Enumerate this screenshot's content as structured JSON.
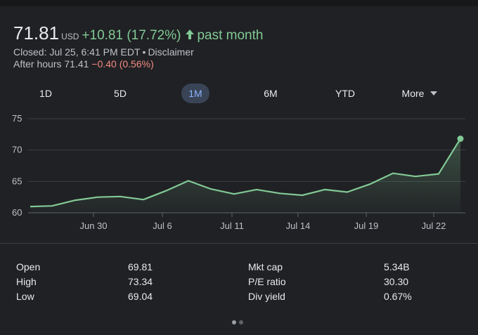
{
  "quote": {
    "price": "71.81",
    "currency": "USD",
    "change": "+10.81 (17.72%)",
    "period": "past month",
    "closed_text": "Closed: Jul 25, 6:41 PM EDT",
    "separator": "•",
    "disclaimer": "Disclaimer",
    "after_hours_label": "After hours 71.41",
    "after_hours_change": "−0.40 (0.56%)"
  },
  "ranges": [
    {
      "label": "1D",
      "active": false
    },
    {
      "label": "5D",
      "active": false
    },
    {
      "label": "1M",
      "active": true
    },
    {
      "label": "6M",
      "active": false
    },
    {
      "label": "YTD",
      "active": false
    },
    {
      "label": "More",
      "active": false
    }
  ],
  "colors": {
    "background": "#202124",
    "positive": "#81c995",
    "negative": "#f28b82",
    "active_tab_bg": "#394457",
    "active_tab_text": "#8ab4f8",
    "gridline": "#3c4043"
  },
  "chart_data": {
    "type": "area",
    "title": "",
    "xlabel": "",
    "ylabel": "",
    "ylim": [
      60,
      75
    ],
    "yticks": [
      "75",
      "70",
      "65",
      "60"
    ],
    "xtick_labels": [
      "Jun 30",
      "Jul 6",
      "Jul 11",
      "Jul 14",
      "Jul 19",
      "Jul 22"
    ],
    "grid": true,
    "series": [
      {
        "x": [
          "Jun 26",
          "Jun 27",
          "Jun 28",
          "Jun 29",
          "Jun 30",
          "Jul 3",
          "Jul 5",
          "Jul 6",
          "Jul 7",
          "Jul 10",
          "Jul 11",
          "Jul 12",
          "Jul 13",
          "Jul 14",
          "Jul 17",
          "Jul 18",
          "Jul 19",
          "Jul 20",
          "Jul 21",
          "Jul 24",
          "Jul 25"
        ],
        "values": [
          61.0,
          61.1,
          62.0,
          62.5,
          62.6,
          62.1,
          63.5,
          65.1,
          63.8,
          63.0,
          63.7,
          63.1,
          62.8,
          63.7,
          63.3,
          64.6,
          66.3,
          65.8,
          66.2,
          71.8,
          71.81
        ]
      }
    ]
  },
  "stats": {
    "left": [
      {
        "label": "Open",
        "value": "69.81"
      },
      {
        "label": "High",
        "value": "73.34"
      },
      {
        "label": "Low",
        "value": "69.04"
      }
    ],
    "right": [
      {
        "label": "Mkt cap",
        "value": "5.34B"
      },
      {
        "label": "P/E ratio",
        "value": "30.30"
      },
      {
        "label": "Div yield",
        "value": "0.67%"
      }
    ]
  },
  "pager": {
    "count": 2,
    "active_index": 0
  }
}
